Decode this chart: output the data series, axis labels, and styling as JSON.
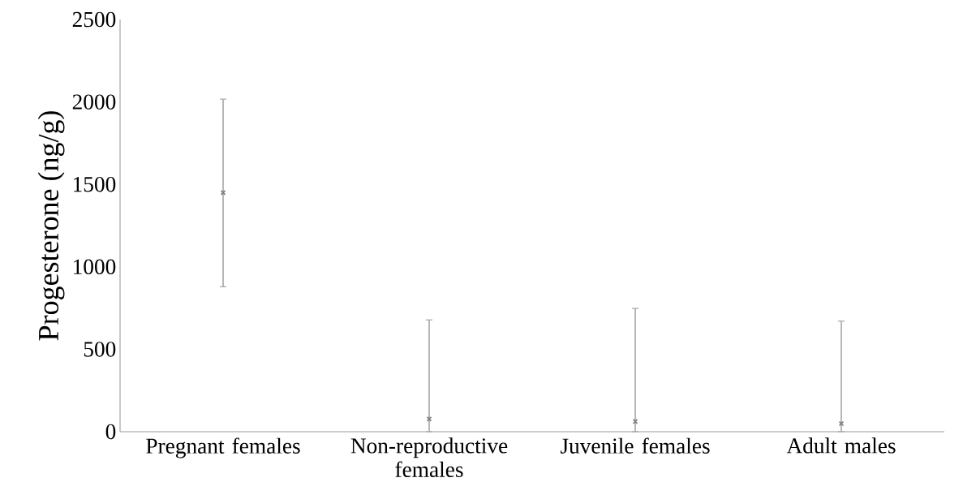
{
  "chart_data": {
    "type": "scatter",
    "ylabel": "Progesterone (ng/g)",
    "categories": [
      "Pregnant females",
      "Non-reproductive females",
      "Juvenile females",
      "Adult males"
    ],
    "series": [
      {
        "color": "#7f7f7f",
        "values": [
          1450,
          77,
          62,
          49
        ],
        "errors": [
          [
            879,
            2017
          ],
          [
            0,
            678
          ],
          [
            0,
            748
          ],
          [
            0,
            671
          ]
        ]
      }
    ],
    "ylim": [
      0,
      2500
    ],
    "yticks": [
      0,
      500,
      1000,
      1500,
      2000,
      2500
    ],
    "grid": false,
    "marker": "cross"
  }
}
